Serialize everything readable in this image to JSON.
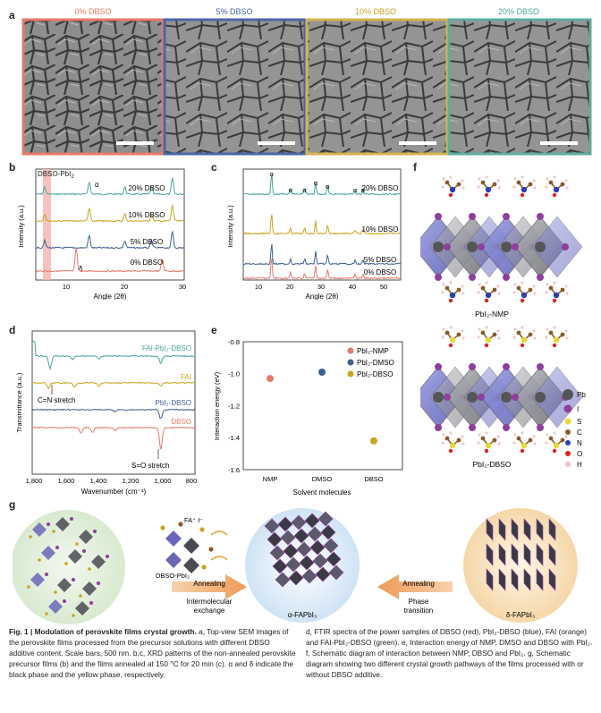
{
  "panels": {
    "a": {
      "label": "a",
      "titles": [
        "0% DBSO",
        "5% DBSO",
        "10% DBSO",
        "20% DBSO"
      ],
      "colors": [
        "#e8796a",
        "#4a66a8",
        "#d3b450",
        "#5cae9c"
      ]
    },
    "b": {
      "label": "b",
      "annotation": "DBSO-PbI",
      "annotation_sub": "2",
      "alpha": "α",
      "delta": "δ",
      "ylabel": "Intensity (a.u.)",
      "xlabel": "Angle (2θ)",
      "xticks": [
        "10",
        "20",
        "30"
      ],
      "series": [
        "20% DBSO",
        "10% DBSO",
        "5% DBSO",
        "0% DBSO"
      ]
    },
    "c": {
      "label": "c",
      "alpha": "α",
      "ylabel": "Intensity (a.u.)",
      "xlabel": "Angle (2θ)",
      "xticks": [
        "10",
        "20",
        "30",
        "40",
        "50"
      ],
      "series": [
        "20% DBSO",
        "10% DBSO",
        "5% DBSO",
        "0% DBSO"
      ]
    },
    "d": {
      "label": "d",
      "ylabel": "Transmittance (a.u.)",
      "xlabel": "Wavenumber (cm⁻¹)",
      "xticks": [
        "1,800",
        "1,600",
        "1,400",
        "1,200",
        "1,000",
        "800"
      ],
      "series": [
        "FAI-PbI₂-DBSO",
        "FAI",
        "PbI₂-DBSO",
        "DBSO"
      ],
      "note_cn": "C=N stretch",
      "note_so": "S=O stretch"
    },
    "e": {
      "label": "e",
      "ylabel": "Interaction energy (eV)",
      "xlabel": "Solvent molecules",
      "yticks": [
        "-0.8",
        "-1.0",
        "-1.2",
        "-1.4",
        "-1.6"
      ],
      "xticks": [
        "NMP",
        "DMSO",
        "DBSO"
      ],
      "legend": [
        "PbI₂-NMP",
        "PbI₂-DMSO",
        "PbI₂-DBSO"
      ]
    },
    "f": {
      "label": "f",
      "title_top": "PbI₂-NMP",
      "title_bottom": "PbI₂-DBSO",
      "legend": [
        "Pb",
        "I",
        "S",
        "C",
        "N",
        "O",
        "H"
      ]
    },
    "g": {
      "label": "g",
      "fa_label": "FA⁺ I⁻",
      "dbso_label": "DBSO-PbI₂",
      "annealing_left": "Annealing",
      "intermolecular": "Intermolecular",
      "exchange": "exchange",
      "annealing_right": "Annealing",
      "phase": "Phase",
      "transition": "transition",
      "alpha_label": "α-FAPbI₃",
      "delta_label": "δ-FAPbI₃"
    }
  },
  "chart_data": [
    {
      "type": "line",
      "panel": "b",
      "xlabel": "Angle (2θ)",
      "ylabel": "Intensity (a.u.)",
      "xlim": [
        5,
        30
      ],
      "series": [
        {
          "name": "20% DBSO",
          "color": "#4aa59a",
          "peaks": [
            6.5,
            14,
            20,
            24.5,
            28
          ]
        },
        {
          "name": "10% DBSO",
          "color": "#c9a520",
          "peaks": [
            6.5,
            14,
            20,
            24.5,
            28
          ]
        },
        {
          "name": "5% DBSO",
          "color": "#3e5f90",
          "peaks": [
            6.5,
            14,
            20,
            24.5,
            28
          ]
        },
        {
          "name": "0% DBSO",
          "color": "#e8796a",
          "peaks": [
            11.8,
            26.3
          ]
        }
      ]
    },
    {
      "type": "line",
      "panel": "c",
      "xlabel": "Angle (2θ)",
      "ylabel": "Intensity (a.u.)",
      "xlim": [
        5,
        55
      ],
      "series": [
        {
          "name": "20% DBSO",
          "color": "#4aa59a"
        },
        {
          "name": "10% DBSO",
          "color": "#c9a520"
        },
        {
          "name": "5% DBSO",
          "color": "#3e5f90"
        },
        {
          "name": "0% DBSO",
          "color": "#e8796a"
        }
      ],
      "alpha_peaks": [
        14,
        20,
        24.5,
        28,
        31.8,
        40.5,
        43
      ]
    },
    {
      "type": "line",
      "panel": "d",
      "xlabel": "Wavenumber (cm⁻¹)",
      "ylabel": "Transmittance (a.u.)",
      "xlim": [
        1800,
        800
      ],
      "series": [
        {
          "name": "FAI-PbI₂-DBSO",
          "color": "#4aa59a"
        },
        {
          "name": "FAI",
          "color": "#c9a520"
        },
        {
          "name": "PbI₂-DBSO",
          "color": "#3e5f90"
        },
        {
          "name": "DBSO",
          "color": "#e8796a"
        }
      ]
    },
    {
      "type": "scatter",
      "panel": "e",
      "xlabel": "Solvent molecules",
      "ylabel": "Interaction energy (eV)",
      "ylim": [
        -1.6,
        -0.8
      ],
      "categories": [
        "NMP",
        "DMSO",
        "DBSO"
      ],
      "values": [
        -1.03,
        -0.99,
        -1.42
      ],
      "colors": [
        "#e8796a",
        "#3e5f90",
        "#c9a520"
      ]
    }
  ],
  "caption": {
    "fig": "Fig. 1 | ",
    "title": "Modulation of perovskite films crystal growth. ",
    "col1": "a, Top-view SEM images of the perovskite films processed from the precursor solutions with different DBSO additive content. Scale bars, 500 nm. b,c, XRD patterns of the non-annealed perovskite precursor films (b) and the films annealed at 150 °C for 20 min (c). α and δ indicate the black phase and the yellow phase, respectively.",
    "col2": "d, FTIR spectra of the power samples of DBSO (red), PbI₂-DBSO (blue), FAI (orange) and FAI-PbI₂-DBSO (green). e, Interaction energy of NMP, DMSO and DBSO with PbI₂. f, Schematic diagram of interaction between NMP, DBSO and PbI₂. g, Schematic diagram showing two different crystal growth pathways of the films processed with or without DBSO additive."
  }
}
